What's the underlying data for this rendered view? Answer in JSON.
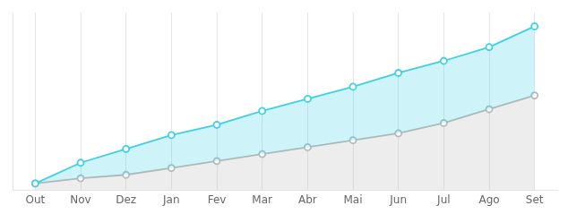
{
  "chart_data": {
    "type": "line",
    "categories": [
      "Out",
      "Nov",
      "Dez",
      "Jan",
      "Fev",
      "Mar",
      "Abr",
      "Mai",
      "Jun",
      "Jul",
      "Ago",
      "Set"
    ],
    "series": [
      {
        "color": "#b8b8b8",
        "marker": "circle",
        "values": [
          1,
          4,
          6,
          10,
          14,
          18,
          22,
          26,
          30,
          36,
          44,
          52
        ]
      },
      {
        "color": "#3dd0e8",
        "marker": "circle",
        "values": [
          1,
          13,
          21,
          29,
          35,
          43,
          50,
          57,
          65,
          72,
          80,
          92
        ]
      }
    ],
    "ylim": [
      -3,
      100
    ],
    "grid": true,
    "tick_labels": "x"
  }
}
